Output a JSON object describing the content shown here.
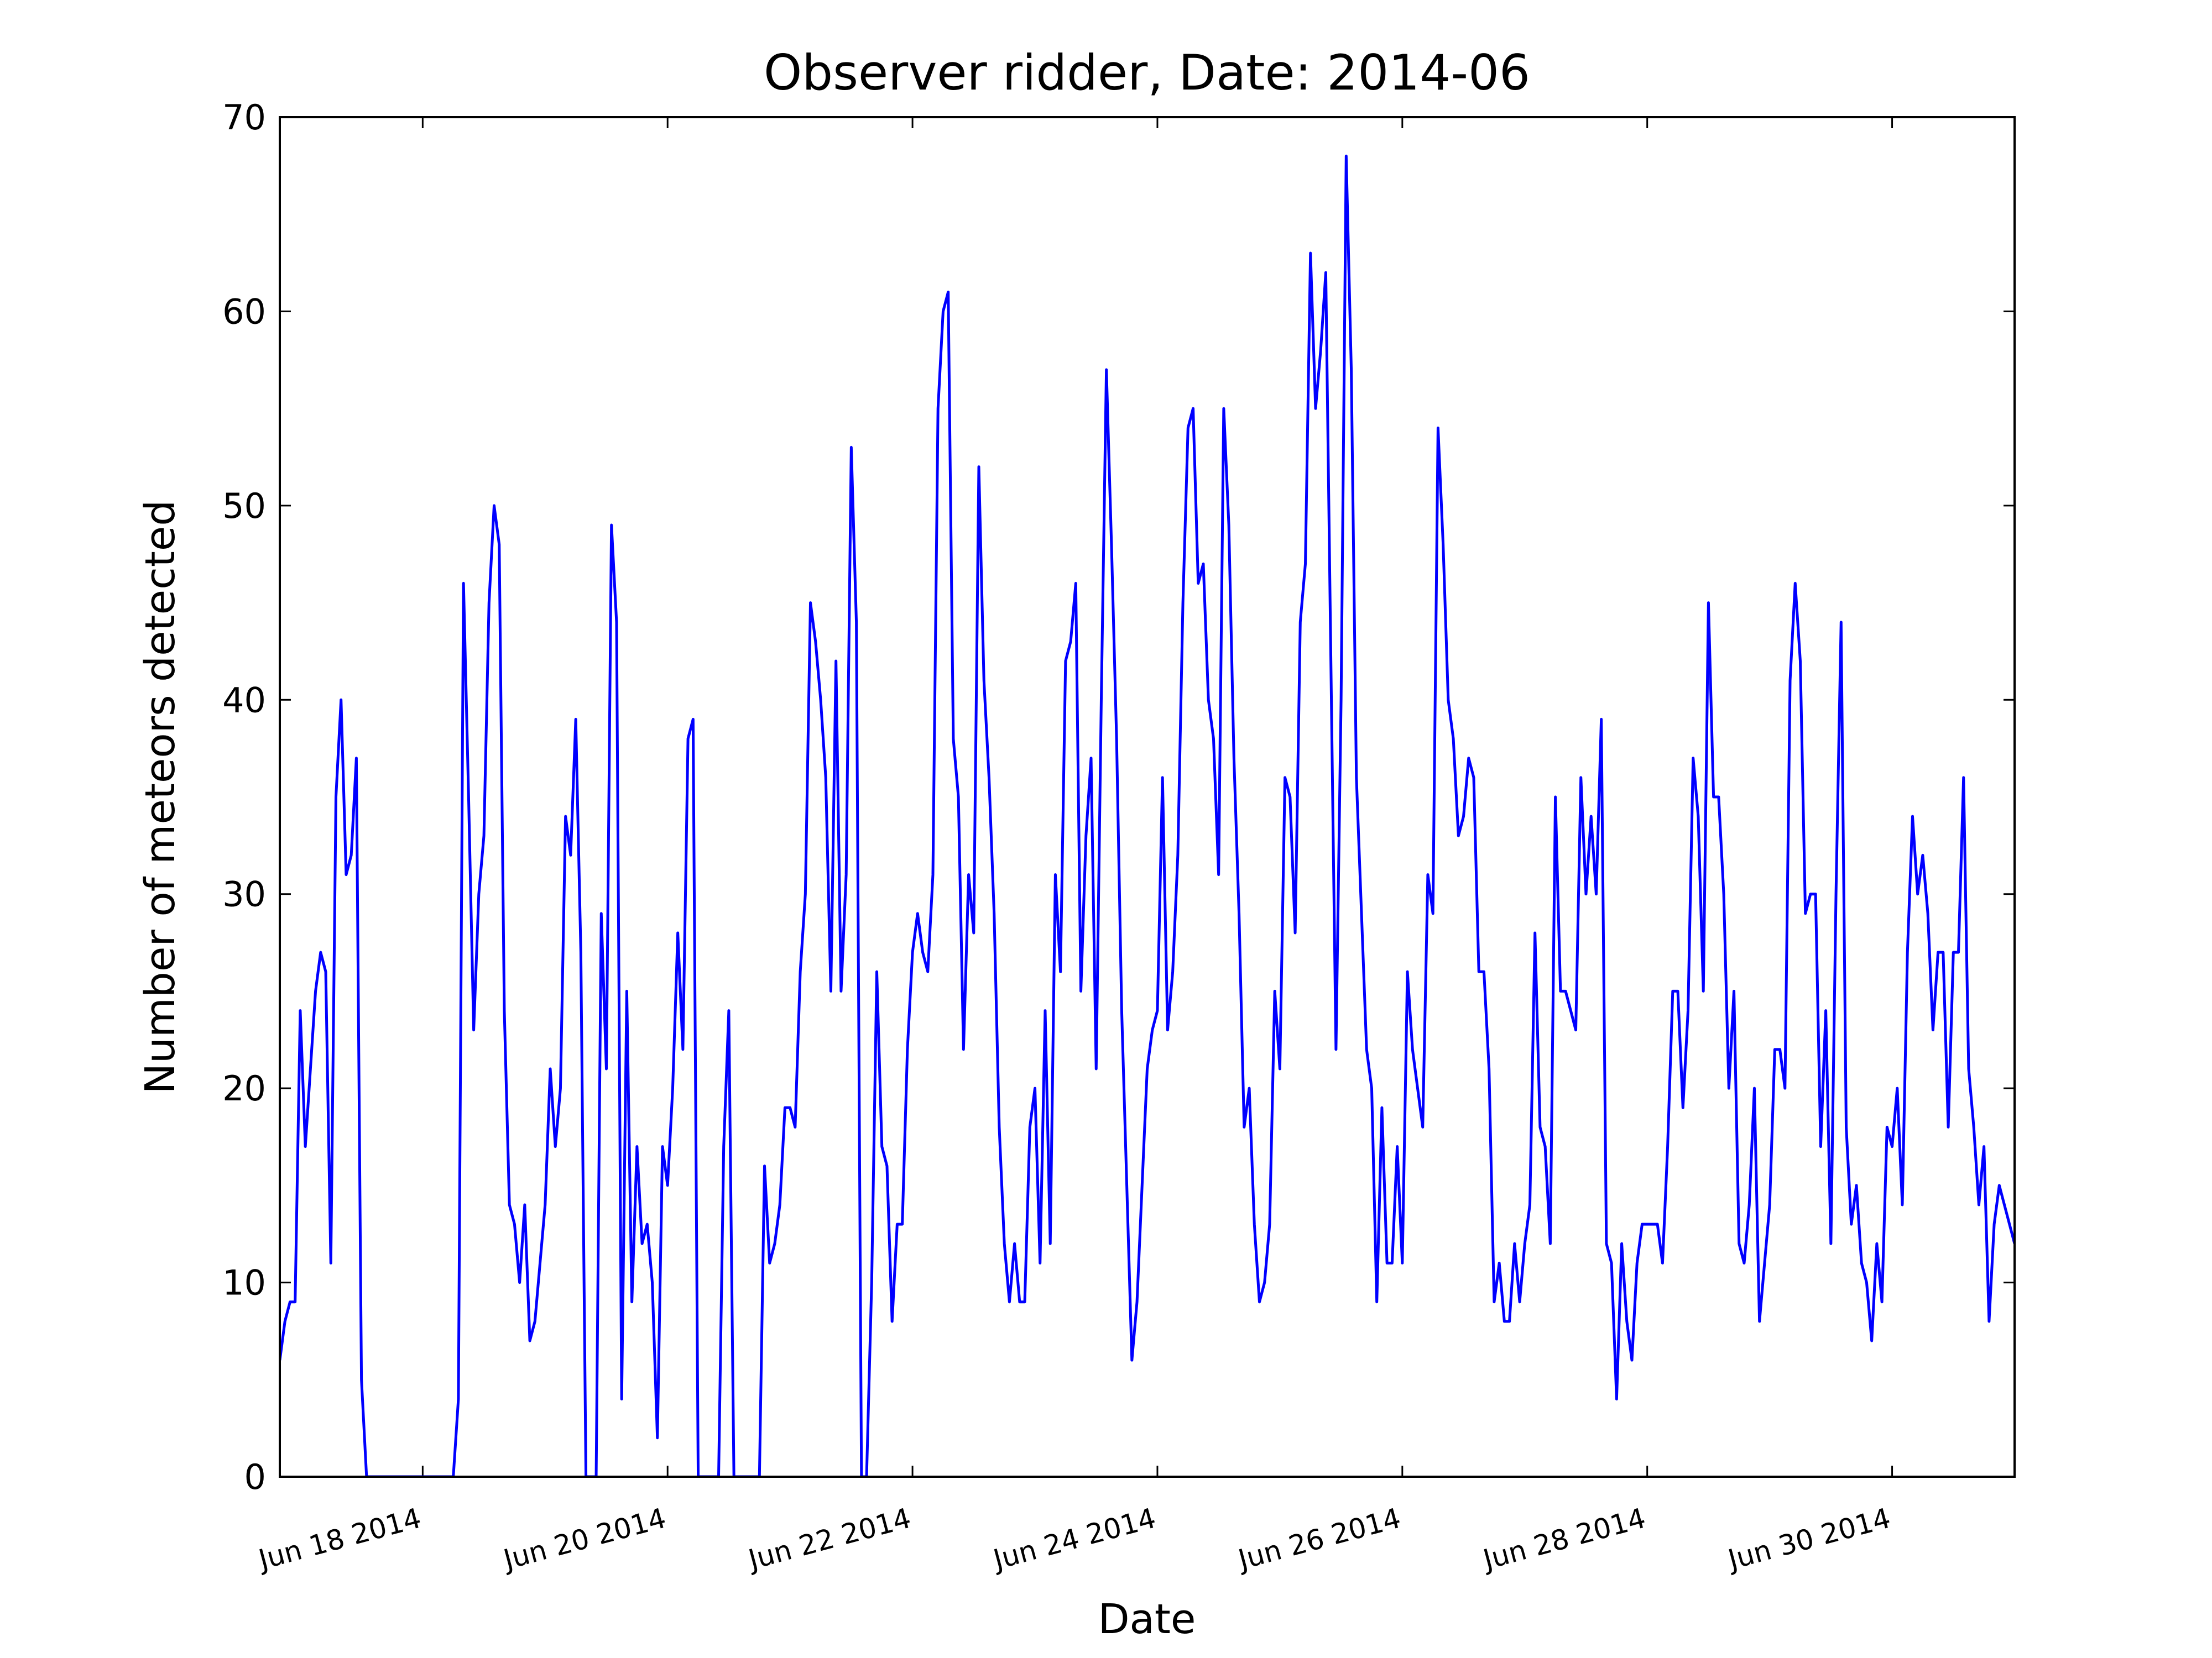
{
  "chart_data": {
    "type": "line",
    "title": "Observer ridder, Date: 2014-06",
    "x_label": "Date",
    "y_label": "Number of meteors detected",
    "color": "#0000ff",
    "x": [
      "2014-06-16T20:00",
      "2014-06-16T21:00",
      "2014-06-16T22:00",
      "2014-06-16T23:00",
      "2014-06-17T00:00",
      "2014-06-17T01:00",
      "2014-06-17T02:00",
      "2014-06-17T03:00",
      "2014-06-17T04:00",
      "2014-06-17T05:00",
      "2014-06-17T06:00",
      "2014-06-17T07:00",
      "2014-06-17T08:00",
      "2014-06-17T09:00",
      "2014-06-17T10:00",
      "2014-06-17T11:00",
      "2014-06-17T12:00",
      "2014-06-17T13:00",
      "2014-06-17T14:00",
      "2014-06-17T15:00",
      "2014-06-17T16:00",
      "2014-06-17T17:00",
      "2014-06-17T18:00",
      "2014-06-17T19:00",
      "2014-06-17T20:00",
      "2014-06-17T21:00",
      "2014-06-17T22:00",
      "2014-06-17T23:00",
      "2014-06-18T00:00",
      "2014-06-18T01:00",
      "2014-06-18T02:00",
      "2014-06-18T03:00",
      "2014-06-18T04:00",
      "2014-06-18T05:00",
      "2014-06-18T06:00",
      "2014-06-18T07:00",
      "2014-06-18T08:00",
      "2014-06-18T09:00",
      "2014-06-18T10:00",
      "2014-06-18T11:00",
      "2014-06-18T12:00",
      "2014-06-18T13:00",
      "2014-06-18T14:00",
      "2014-06-18T15:00",
      "2014-06-18T16:00",
      "2014-06-18T17:00",
      "2014-06-18T18:00",
      "2014-06-18T19:00",
      "2014-06-18T20:00",
      "2014-06-18T21:00",
      "2014-06-18T22:00",
      "2014-06-18T23:00",
      "2014-06-19T00:00",
      "2014-06-19T01:00",
      "2014-06-19T02:00",
      "2014-06-19T03:00",
      "2014-06-19T04:00",
      "2014-06-19T05:00",
      "2014-06-19T06:00",
      "2014-06-19T07:00",
      "2014-06-19T08:00",
      "2014-06-19T09:00",
      "2014-06-19T10:00",
      "2014-06-19T11:00",
      "2014-06-19T12:00",
      "2014-06-19T13:00",
      "2014-06-19T14:00",
      "2014-06-19T15:00",
      "2014-06-19T16:00",
      "2014-06-19T17:00",
      "2014-06-19T18:00",
      "2014-06-19T19:00",
      "2014-06-19T20:00",
      "2014-06-19T21:00",
      "2014-06-19T22:00",
      "2014-06-19T23:00",
      "2014-06-20T00:00",
      "2014-06-20T01:00",
      "2014-06-20T02:00",
      "2014-06-20T03:00",
      "2014-06-20T04:00",
      "2014-06-20T05:00",
      "2014-06-20T06:00",
      "2014-06-20T07:00",
      "2014-06-20T08:00",
      "2014-06-20T09:00",
      "2014-06-20T10:00",
      "2014-06-20T11:00",
      "2014-06-20T12:00",
      "2014-06-20T13:00",
      "2014-06-20T14:00",
      "2014-06-20T15:00",
      "2014-06-20T16:00",
      "2014-06-20T17:00",
      "2014-06-20T18:00",
      "2014-06-20T19:00",
      "2014-06-20T20:00",
      "2014-06-20T21:00",
      "2014-06-20T22:00",
      "2014-06-20T23:00",
      "2014-06-21T00:00",
      "2014-06-21T01:00",
      "2014-06-21T02:00",
      "2014-06-21T03:00",
      "2014-06-21T04:00",
      "2014-06-21T05:00",
      "2014-06-21T06:00",
      "2014-06-21T07:00",
      "2014-06-21T08:00",
      "2014-06-21T09:00",
      "2014-06-21T10:00",
      "2014-06-21T11:00",
      "2014-06-21T12:00",
      "2014-06-21T13:00",
      "2014-06-21T14:00",
      "2014-06-21T15:00",
      "2014-06-21T16:00",
      "2014-06-21T17:00",
      "2014-06-21T18:00",
      "2014-06-21T19:00",
      "2014-06-21T20:00",
      "2014-06-21T21:00",
      "2014-06-21T22:00",
      "2014-06-21T23:00",
      "2014-06-22T00:00",
      "2014-06-22T01:00",
      "2014-06-22T02:00",
      "2014-06-22T03:00",
      "2014-06-22T04:00",
      "2014-06-22T05:00",
      "2014-06-22T06:00",
      "2014-06-22T07:00",
      "2014-06-22T08:00",
      "2014-06-22T09:00",
      "2014-06-22T10:00",
      "2014-06-22T11:00",
      "2014-06-22T12:00",
      "2014-06-22T13:00",
      "2014-06-22T14:00",
      "2014-06-22T15:00",
      "2014-06-22T16:00",
      "2014-06-22T17:00",
      "2014-06-22T18:00",
      "2014-06-22T19:00",
      "2014-06-22T20:00",
      "2014-06-22T21:00",
      "2014-06-22T22:00",
      "2014-06-22T23:00",
      "2014-06-23T00:00",
      "2014-06-23T01:00",
      "2014-06-23T02:00",
      "2014-06-23T03:00",
      "2014-06-23T04:00",
      "2014-06-23T05:00",
      "2014-06-23T06:00",
      "2014-06-23T07:00",
      "2014-06-23T08:00",
      "2014-06-23T09:00",
      "2014-06-23T10:00",
      "2014-06-23T11:00",
      "2014-06-23T12:00",
      "2014-06-23T13:00",
      "2014-06-23T14:00",
      "2014-06-23T15:00",
      "2014-06-23T16:00",
      "2014-06-23T17:00",
      "2014-06-23T18:00",
      "2014-06-23T19:00",
      "2014-06-23T20:00",
      "2014-06-23T21:00",
      "2014-06-23T22:00",
      "2014-06-23T23:00",
      "2014-06-24T00:00",
      "2014-06-24T01:00",
      "2014-06-24T02:00",
      "2014-06-24T03:00",
      "2014-06-24T04:00",
      "2014-06-24T05:00",
      "2014-06-24T06:00",
      "2014-06-24T07:00",
      "2014-06-24T08:00",
      "2014-06-24T09:00",
      "2014-06-24T10:00",
      "2014-06-24T11:00",
      "2014-06-24T12:00",
      "2014-06-24T13:00",
      "2014-06-24T14:00",
      "2014-06-24T15:00",
      "2014-06-24T16:00",
      "2014-06-24T17:00",
      "2014-06-24T18:00",
      "2014-06-24T19:00",
      "2014-06-24T20:00",
      "2014-06-24T21:00",
      "2014-06-24T22:00",
      "2014-06-24T23:00",
      "2014-06-25T00:00",
      "2014-06-25T01:00",
      "2014-06-25T02:00",
      "2014-06-25T03:00",
      "2014-06-25T04:00",
      "2014-06-25T05:00",
      "2014-06-25T06:00",
      "2014-06-25T07:00",
      "2014-06-25T08:00",
      "2014-06-25T09:00",
      "2014-06-25T10:00",
      "2014-06-25T11:00",
      "2014-06-25T12:00",
      "2014-06-25T13:00",
      "2014-06-25T14:00",
      "2014-06-25T15:00",
      "2014-06-25T16:00",
      "2014-06-25T17:00",
      "2014-06-25T18:00",
      "2014-06-25T19:00",
      "2014-06-25T20:00",
      "2014-06-25T21:00",
      "2014-06-25T22:00",
      "2014-06-25T23:00",
      "2014-06-26T00:00",
      "2014-06-26T01:00",
      "2014-06-26T02:00",
      "2014-06-26T03:00",
      "2014-06-26T04:00",
      "2014-06-26T05:00",
      "2014-06-26T06:00",
      "2014-06-26T07:00",
      "2014-06-26T08:00",
      "2014-06-26T09:00",
      "2014-06-26T10:00",
      "2014-06-26T11:00",
      "2014-06-26T12:00",
      "2014-06-26T13:00",
      "2014-06-26T14:00",
      "2014-06-26T15:00",
      "2014-06-26T16:00",
      "2014-06-26T17:00",
      "2014-06-26T18:00",
      "2014-06-26T19:00",
      "2014-06-26T20:00",
      "2014-06-26T21:00",
      "2014-06-26T22:00",
      "2014-06-26T23:00",
      "2014-06-27T00:00",
      "2014-06-27T01:00",
      "2014-06-27T02:00",
      "2014-06-27T03:00",
      "2014-06-27T04:00",
      "2014-06-27T05:00",
      "2014-06-27T06:00",
      "2014-06-27T07:00",
      "2014-06-27T08:00",
      "2014-06-27T09:00",
      "2014-06-27T10:00",
      "2014-06-27T11:00",
      "2014-06-27T12:00",
      "2014-06-27T13:00",
      "2014-06-27T14:00",
      "2014-06-27T15:00",
      "2014-06-27T16:00",
      "2014-06-27T17:00",
      "2014-06-27T18:00",
      "2014-06-27T19:00",
      "2014-06-27T20:00",
      "2014-06-27T21:00",
      "2014-06-27T22:00",
      "2014-06-27T23:00",
      "2014-06-28T00:00",
      "2014-06-28T01:00",
      "2014-06-28T02:00",
      "2014-06-28T03:00",
      "2014-06-28T04:00",
      "2014-06-28T05:00",
      "2014-06-28T06:00",
      "2014-06-28T07:00",
      "2014-06-28T08:00",
      "2014-06-28T09:00",
      "2014-06-28T10:00",
      "2014-06-28T11:00",
      "2014-06-28T12:00",
      "2014-06-28T13:00",
      "2014-06-28T14:00",
      "2014-06-28T15:00",
      "2014-06-28T16:00",
      "2014-06-28T17:00",
      "2014-06-28T18:00",
      "2014-06-28T19:00",
      "2014-06-28T20:00",
      "2014-06-28T21:00",
      "2014-06-28T22:00",
      "2014-06-28T23:00",
      "2014-06-29T00:00",
      "2014-06-29T01:00",
      "2014-06-29T02:00",
      "2014-06-29T03:00",
      "2014-06-29T04:00",
      "2014-06-29T05:00",
      "2014-06-29T06:00",
      "2014-06-29T07:00",
      "2014-06-29T08:00",
      "2014-06-29T09:00",
      "2014-06-29T10:00",
      "2014-06-29T11:00",
      "2014-06-29T12:00",
      "2014-06-29T13:00",
      "2014-06-29T14:00",
      "2014-06-29T15:00",
      "2014-06-29T16:00",
      "2014-06-29T17:00",
      "2014-06-29T18:00",
      "2014-06-29T19:00",
      "2014-06-29T20:00",
      "2014-06-29T21:00",
      "2014-06-29T22:00",
      "2014-06-29T23:00",
      "2014-06-30T00:00",
      "2014-06-30T01:00",
      "2014-06-30T02:00",
      "2014-06-30T03:00",
      "2014-06-30T04:00",
      "2014-06-30T05:00",
      "2014-06-30T06:00",
      "2014-06-30T07:00",
      "2014-06-30T08:00",
      "2014-06-30T09:00",
      "2014-06-30T10:00",
      "2014-06-30T11:00",
      "2014-06-30T12:00",
      "2014-06-30T13:00",
      "2014-06-30T14:00",
      "2014-06-30T15:00",
      "2014-06-30T16:00",
      "2014-06-30T17:00",
      "2014-06-30T18:00",
      "2014-06-30T19:00",
      "2014-06-30T20:00",
      "2014-06-30T21:00",
      "2014-06-30T22:00",
      "2014-06-30T23:00",
      "2014-07-01T00:00"
    ],
    "values": [
      6,
      8,
      9,
      9,
      24,
      17,
      21,
      25,
      27,
      26,
      11,
      35,
      40,
      31,
      32,
      37,
      5,
      0,
      0,
      0,
      0,
      0,
      0,
      0,
      0,
      0,
      0,
      0,
      0,
      0,
      0,
      0,
      0,
      0,
      0,
      4,
      46,
      35,
      23,
      30,
      33,
      45,
      50,
      48,
      24,
      14,
      13,
      10,
      14,
      7,
      8,
      11,
      14,
      21,
      17,
      20,
      34,
      32,
      39,
      27,
      0,
      0,
      0,
      29,
      21,
      49,
      44,
      4,
      25,
      9,
      17,
      12,
      13,
      10,
      2,
      17,
      15,
      20,
      28,
      22,
      38,
      39,
      0,
      0,
      0,
      0,
      0,
      17,
      24,
      0,
      0,
      0,
      0,
      0,
      0,
      16,
      11,
      12,
      14,
      19,
      19,
      18,
      26,
      30,
      45,
      43,
      40,
      36,
      25,
      42,
      25,
      31,
      53,
      44,
      0,
      0,
      10,
      26,
      17,
      16,
      8,
      13,
      13,
      22,
      27,
      29,
      27,
      26,
      31,
      55,
      60,
      61,
      38,
      35,
      22,
      31,
      28,
      52,
      41,
      36,
      29,
      18,
      12,
      9,
      12,
      9,
      9,
      18,
      20,
      11,
      24,
      12,
      31,
      26,
      42,
      43,
      46,
      25,
      33,
      37,
      21,
      40,
      57,
      48,
      38,
      24,
      15,
      6,
      9,
      15,
      21,
      23,
      24,
      36,
      23,
      26,
      32,
      45,
      54,
      55,
      46,
      47,
      40,
      38,
      31,
      55,
      49,
      37,
      29,
      18,
      20,
      13,
      9,
      10,
      13,
      25,
      21,
      36,
      35,
      28,
      44,
      47,
      63,
      55,
      58,
      62,
      42,
      22,
      40,
      68,
      57,
      36,
      29,
      22,
      20,
      9,
      19,
      11,
      11,
      17,
      11,
      26,
      22,
      20,
      18,
      31,
      29,
      54,
      48,
      40,
      38,
      33,
      34,
      37,
      36,
      26,
      26,
      21,
      9,
      11,
      8,
      8,
      12,
      9,
      12,
      14,
      28,
      18,
      17,
      12,
      35,
      25,
      25,
      24,
      23,
      36,
      30,
      34,
      30,
      39,
      12,
      11,
      4,
      12,
      8,
      6,
      11,
      13,
      13,
      13,
      13,
      11,
      17,
      25,
      25,
      19,
      24,
      37,
      34,
      25,
      45,
      35,
      35,
      30,
      20,
      25,
      12,
      11,
      14,
      20,
      8,
      11,
      14,
      22,
      22,
      20,
      41,
      46,
      42,
      29,
      30,
      30,
      17,
      24,
      12,
      30,
      44,
      18,
      13,
      15,
      11,
      10,
      7,
      12,
      9,
      18,
      17,
      20,
      14,
      27,
      34,
      30,
      32,
      29,
      23,
      27,
      27,
      18,
      27,
      27,
      36,
      21,
      18,
      14,
      17,
      8,
      13,
      15,
      14,
      13,
      12
    ],
    "xlim": [
      "2014-06-16T20:00",
      "2014-07-01T00:00"
    ],
    "xticks": [
      {
        "value": "2014-06-18T00:00",
        "label": "Jun 18 2014"
      },
      {
        "value": "2014-06-20T00:00",
        "label": "Jun 20 2014"
      },
      {
        "value": "2014-06-22T00:00",
        "label": "Jun 22 2014"
      },
      {
        "value": "2014-06-24T00:00",
        "label": "Jun 24 2014"
      },
      {
        "value": "2014-06-26T00:00",
        "label": "Jun 26 2014"
      },
      {
        "value": "2014-06-28T00:00",
        "label": "Jun 28 2014"
      },
      {
        "value": "2014-06-30T00:00",
        "label": "Jun 30 2014"
      }
    ],
    "ylim": [
      0,
      70
    ],
    "yticks": [
      0,
      10,
      20,
      30,
      40,
      50,
      60,
      70
    ],
    "grid": false
  }
}
